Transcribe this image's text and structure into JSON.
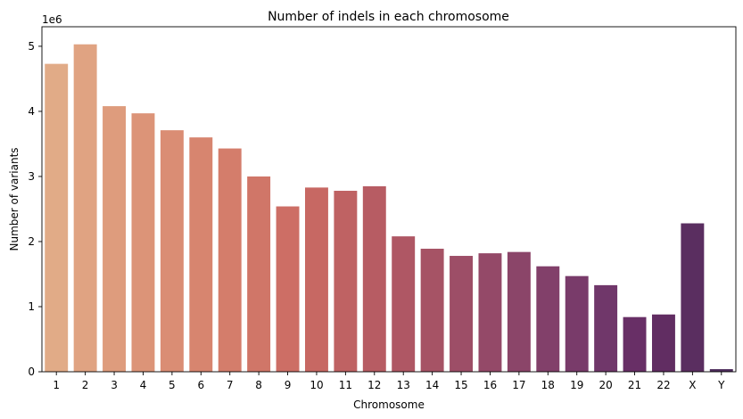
{
  "chart_data": {
    "type": "bar",
    "title": "Number of indels in each chromosome",
    "xlabel": "Chromosome",
    "ylabel": "Number of variants",
    "y_scale_label": "1e6",
    "categories": [
      "1",
      "2",
      "3",
      "4",
      "5",
      "6",
      "7",
      "8",
      "9",
      "10",
      "11",
      "12",
      "13",
      "14",
      "15",
      "16",
      "17",
      "18",
      "19",
      "20",
      "21",
      "22",
      "X",
      "Y"
    ],
    "values": [
      4730000,
      5030000,
      4080000,
      3970000,
      3710000,
      3600000,
      3430000,
      3000000,
      2540000,
      2830000,
      2780000,
      2850000,
      2080000,
      1890000,
      1780000,
      1820000,
      1840000,
      1620000,
      1470000,
      1330000,
      840000,
      880000,
      2280000,
      40000
    ],
    "ylim": [
      0,
      5300000
    ],
    "y_ticks": [
      0,
      1000000,
      2000000,
      3000000,
      4000000,
      5000000
    ],
    "y_tick_labels": [
      "0",
      "1",
      "2",
      "3",
      "4",
      "5"
    ],
    "grid": false,
    "colors": [
      "#e1ab87",
      "#e0a382",
      "#de9c7d",
      "#dc9478",
      "#da8d74",
      "#d7856f",
      "#d47d6b",
      "#d07668",
      "#cd6e65",
      "#c76863",
      "#bf6263",
      "#b75c63",
      "#af5764",
      "#a65365",
      "#9d4e67",
      "#944968",
      "#8b4569",
      "#82406a",
      "#793b6a",
      "#70376a",
      "#682f66",
      "#612d62",
      "#5a2e60",
      "#4d2c5b"
    ]
  }
}
